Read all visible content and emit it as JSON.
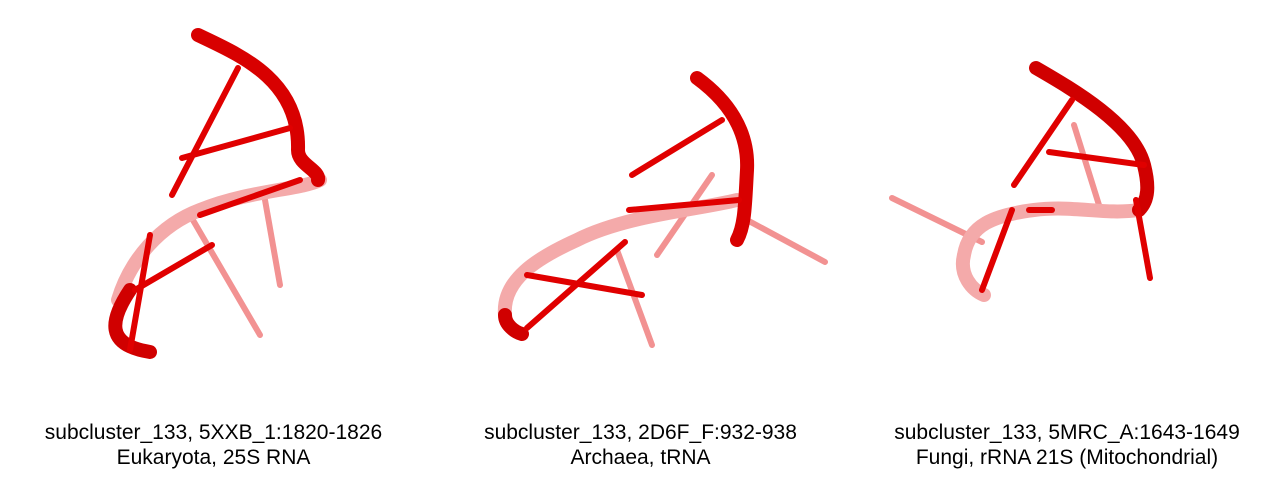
{
  "panels": [
    {
      "caption_line1": "subcluster_133, 5XXB_1:1820-1826",
      "caption_line2": "Eukaryota, 25S RNA",
      "structure_color": "#e00000"
    },
    {
      "caption_line1": "subcluster_133, 2D6F_F:932-938",
      "caption_line2": "Archaea, tRNA",
      "structure_color": "#e00000"
    },
    {
      "caption_line1": "subcluster_133, 5MRC_A:1643-1649",
      "caption_line2": "Fungi, rRNA 21S (Mitochondrial)",
      "structure_color": "#e00000"
    }
  ]
}
